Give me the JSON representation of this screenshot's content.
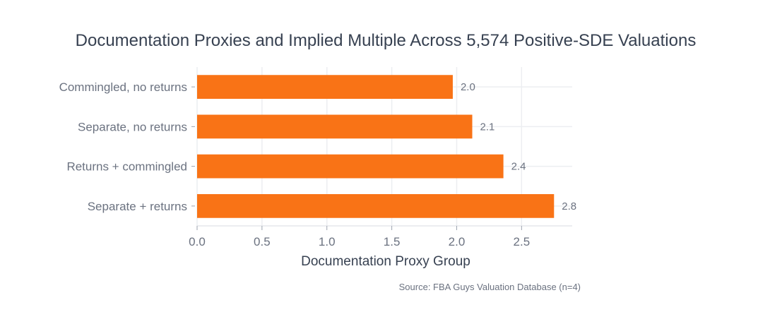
{
  "chart_data": {
    "type": "bar",
    "orientation": "horizontal",
    "title": "Documentation Proxies and Implied Multiple Across 5,574 Positive-SDE Valuations",
    "xlabel": "Documentation Proxy Group",
    "ylabel": "",
    "categories": [
      "Commingled, no returns",
      "Separate, no returns",
      "Returns + commingled",
      "Separate + returns"
    ],
    "values": [
      1.97,
      2.12,
      2.36,
      2.75
    ],
    "data_labels": [
      "2.0",
      "2.1",
      "2.4",
      "2.8"
    ],
    "xlim": [
      0,
      2.89
    ],
    "xticks": [
      0,
      0.5,
      1,
      1.5,
      2,
      2.5
    ],
    "xtick_labels": [
      "0.0",
      "0.5",
      "1.0",
      "1.5",
      "2.0",
      "2.5"
    ],
    "grid": true,
    "bar_color": "#f97316",
    "annotation": "Source: FBA Guys Valuation Database (n=4)"
  }
}
